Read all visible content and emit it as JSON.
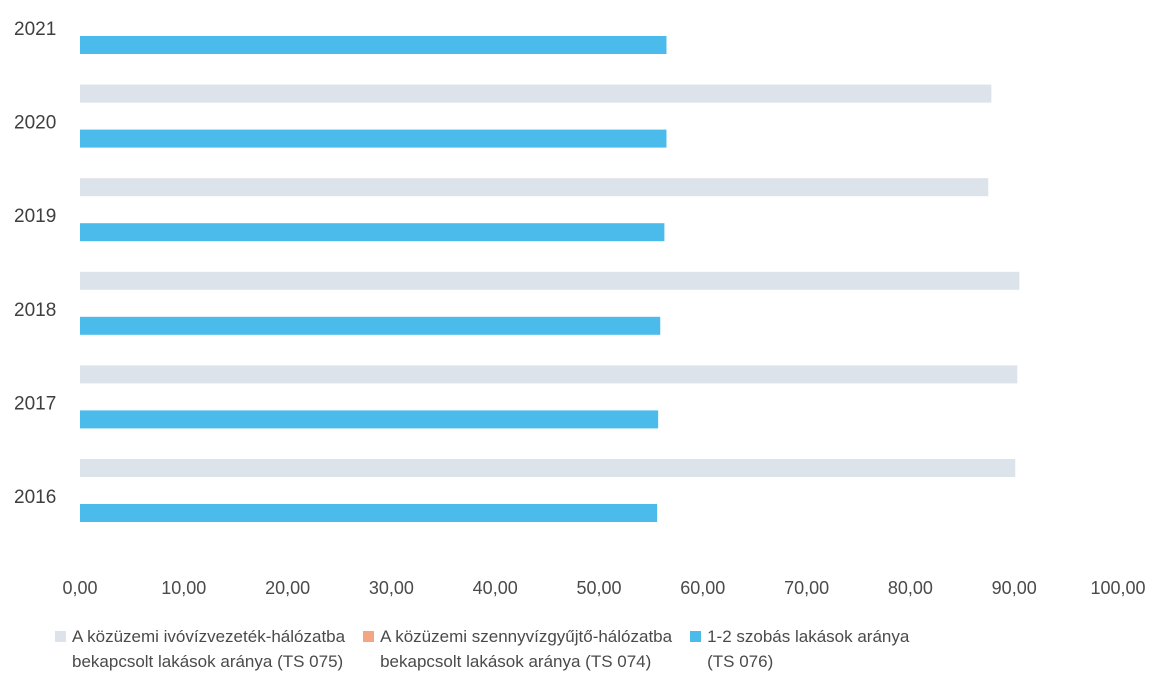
{
  "chart_data": {
    "type": "bar",
    "orientation": "horizontal",
    "categories": [
      "2021",
      "2020",
      "2019",
      "2018",
      "2017",
      "2016"
    ],
    "series": [
      {
        "name": "A közüzemi ivóvízvezeték-hálózatba\nbekapcsolt lakások aránya (TS 075)",
        "color": "#dde3ea",
        "values": [
          null,
          87.8,
          87.5,
          90.5,
          90.3,
          90.1
        ]
      },
      {
        "name": "A közüzemi szennyvízgyűjtő-hálózatba\nbekapcsolt lakások aránya (TS 074)",
        "color": "#f4a582",
        "values": [
          null,
          null,
          null,
          null,
          null,
          null
        ]
      },
      {
        "name": "1-2 szobás lakások aránya\n(TS 076)",
        "color": "#4bbbec",
        "values": [
          56.5,
          56.5,
          56.3,
          55.9,
          55.7,
          55.6
        ]
      }
    ],
    "x_ticks": [
      "0,00",
      "10,00",
      "20,00",
      "30,00",
      "40,00",
      "50,00",
      "60,00",
      "70,00",
      "80,00",
      "90,00",
      "100,00"
    ],
    "xlim": [
      0,
      100
    ],
    "grid": false,
    "legend_position": "bottom"
  }
}
